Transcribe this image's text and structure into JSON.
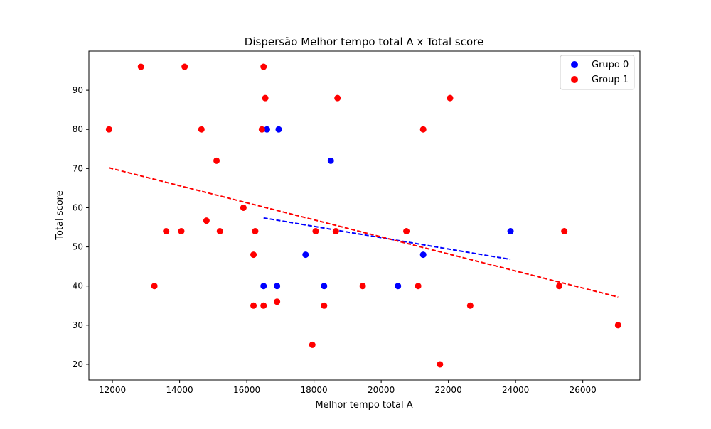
{
  "chart_data": {
    "type": "scatter",
    "title": "Dispersão Melhor tempo total A x Total score",
    "xlabel": "Melhor tempo total A",
    "ylabel": "Total score",
    "xlim": [
      11300,
      27700
    ],
    "ylim": [
      16,
      100
    ],
    "x_ticks": [
      12000,
      14000,
      16000,
      18000,
      20000,
      22000,
      24000,
      26000
    ],
    "y_ticks": [
      20,
      30,
      40,
      50,
      60,
      70,
      80,
      90
    ],
    "grid": false,
    "legend_position": "top-right",
    "series": [
      {
        "name": "Grupo 0",
        "color": "#0000ff",
        "points": [
          [
            16600,
            80
          ],
          [
            16950,
            80
          ],
          [
            18500,
            72
          ],
          [
            23850,
            54
          ],
          [
            17750,
            48
          ],
          [
            21250,
            48
          ],
          [
            16500,
            40
          ],
          [
            16900,
            40
          ],
          [
            18300,
            40
          ],
          [
            20500,
            40
          ]
        ],
        "trend": {
          "x": [
            16500,
            23850
          ],
          "y": [
            57.4,
            46.8
          ]
        }
      },
      {
        "name": "Group 1",
        "color": "#ff0000",
        "points": [
          [
            11900,
            80
          ],
          [
            12850,
            96
          ],
          [
            13250,
            40
          ],
          [
            13600,
            54
          ],
          [
            14050,
            54
          ],
          [
            14150,
            96
          ],
          [
            14650,
            80
          ],
          [
            14800,
            56.7
          ],
          [
            15100,
            72
          ],
          [
            15200,
            54
          ],
          [
            15900,
            60
          ],
          [
            16200,
            48
          ],
          [
            16200,
            35
          ],
          [
            16250,
            54
          ],
          [
            16450,
            80
          ],
          [
            16500,
            35
          ],
          [
            16500,
            96
          ],
          [
            16550,
            88
          ],
          [
            16900,
            36
          ],
          [
            17950,
            25
          ],
          [
            18050,
            54
          ],
          [
            18300,
            35
          ],
          [
            18650,
            54
          ],
          [
            18700,
            88
          ],
          [
            19450,
            40
          ],
          [
            20750,
            54
          ],
          [
            21100,
            40
          ],
          [
            21250,
            80
          ],
          [
            21750,
            20
          ],
          [
            22050,
            88
          ],
          [
            22650,
            35
          ],
          [
            25300,
            40
          ],
          [
            25450,
            54
          ],
          [
            27050,
            30
          ]
        ],
        "trend": {
          "x": [
            11900,
            27050
          ],
          "y": [
            70.2,
            37.2
          ]
        }
      }
    ]
  }
}
